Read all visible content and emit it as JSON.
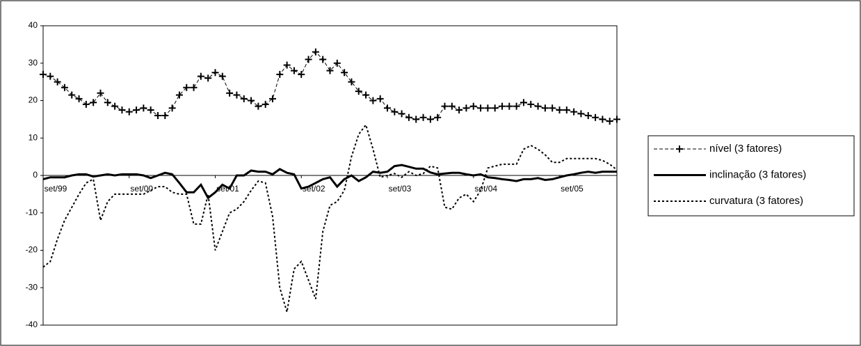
{
  "chart_data": {
    "type": "line",
    "categories": [
      "set/99",
      null,
      null,
      null,
      null,
      null,
      null,
      null,
      null,
      null,
      null,
      null,
      "set/00",
      null,
      null,
      null,
      null,
      null,
      null,
      null,
      null,
      null,
      null,
      null,
      "set/01",
      null,
      null,
      null,
      null,
      null,
      null,
      null,
      null,
      null,
      null,
      null,
      "set/02",
      null,
      null,
      null,
      null,
      null,
      null,
      null,
      null,
      null,
      null,
      null,
      "set/03",
      null,
      null,
      null,
      null,
      null,
      null,
      null,
      null,
      null,
      null,
      null,
      "set/04",
      null,
      null,
      null,
      null,
      null,
      null,
      null,
      null,
      null,
      null,
      null,
      "set/05",
      null,
      null,
      null,
      null,
      null,
      null,
      null,
      null
    ],
    "ylim": [
      -40,
      40
    ],
    "yticks": [
      -40,
      -30,
      -20,
      -10,
      0,
      10,
      20,
      30,
      40
    ],
    "legend": "right",
    "series": [
      {
        "name": "nível (3 fatores)",
        "color": "#000000",
        "line_style": "dashed",
        "marker": "plus",
        "values": [
          27,
          26.5,
          25,
          23.5,
          21.5,
          20.5,
          19,
          19.5,
          22,
          19.5,
          18.5,
          17.5,
          17,
          17.5,
          18,
          17.5,
          16,
          16,
          18,
          21.5,
          23.5,
          23.5,
          26.5,
          26,
          27.5,
          26.5,
          22,
          21.5,
          20.5,
          20,
          18.5,
          19,
          20.5,
          27,
          29.5,
          28,
          27,
          31,
          33,
          31,
          28,
          30,
          27.5,
          25,
          22.5,
          21.5,
          20,
          20.5,
          18,
          17,
          16.5,
          15.5,
          15,
          15.5,
          15,
          15.5,
          18.5,
          18.5,
          17.5,
          18,
          18.5,
          18,
          18,
          18,
          18.5,
          18.5,
          18.5,
          19.5,
          19,
          18.5,
          18,
          18,
          17.5,
          17.5,
          17,
          16.5,
          16,
          15.5,
          15,
          14.5,
          15
        ]
      },
      {
        "name": "inclinação (3 fatores)",
        "color": "#000000",
        "line_style": "solid",
        "values": [
          -1,
          -0.5,
          -0.5,
          -0.5,
          0,
          0.3,
          0.3,
          -0.3,
          0,
          0.3,
          0,
          0.3,
          0.3,
          0.3,
          0,
          -0.7,
          0,
          0.7,
          0.3,
          -2,
          -4.5,
          -4.5,
          -2.5,
          -6,
          -4.5,
          -2.5,
          -3.5,
          0,
          0,
          1.3,
          1,
          1,
          0.3,
          1.7,
          0.7,
          0.3,
          -3.5,
          -3,
          -2,
          -1,
          -0.5,
          -3,
          -1,
          0,
          -1.5,
          -0.5,
          1,
          0.7,
          1,
          2.5,
          2.8,
          2.3,
          1.8,
          1.8,
          0.8,
          0.3,
          0.5,
          0.7,
          0.7,
          0.3,
          0,
          0.3,
          -0.5,
          -0.7,
          -1,
          -1.2,
          -1.5,
          -1,
          -1,
          -0.7,
          -1.2,
          -1,
          -0.5,
          0,
          0.3,
          0.7,
          1,
          0.7,
          1,
          1,
          1
        ]
      },
      {
        "name": "curvatura (3 fatores)",
        "color": "#000000",
        "line_style": "dotted",
        "values": [
          -24.5,
          -23,
          -17,
          -12,
          -8.5,
          -5,
          -2,
          -1,
          -12,
          -7,
          -5,
          -5,
          -5,
          -5,
          -5,
          -4,
          -3,
          -3,
          -4.5,
          -5,
          -5,
          -13,
          -13,
          -5,
          -20,
          -15,
          -10,
          -9,
          -7,
          -4,
          -1.5,
          -2,
          -11,
          -30,
          -36.5,
          -25,
          -23,
          -28,
          -33,
          -15,
          -8,
          -7,
          -4,
          5,
          11,
          13.5,
          7,
          -0.5,
          0,
          0.5,
          -0.5,
          1,
          0,
          0.5,
          2.5,
          2,
          -8.5,
          -9,
          -6,
          -5,
          -7,
          -4,
          2,
          2.5,
          3,
          3,
          3,
          7,
          8,
          7,
          5.5,
          3.5,
          3.5,
          4.5,
          4.5,
          4.5,
          4.5,
          4.5,
          4,
          3,
          1.5
        ]
      }
    ]
  }
}
